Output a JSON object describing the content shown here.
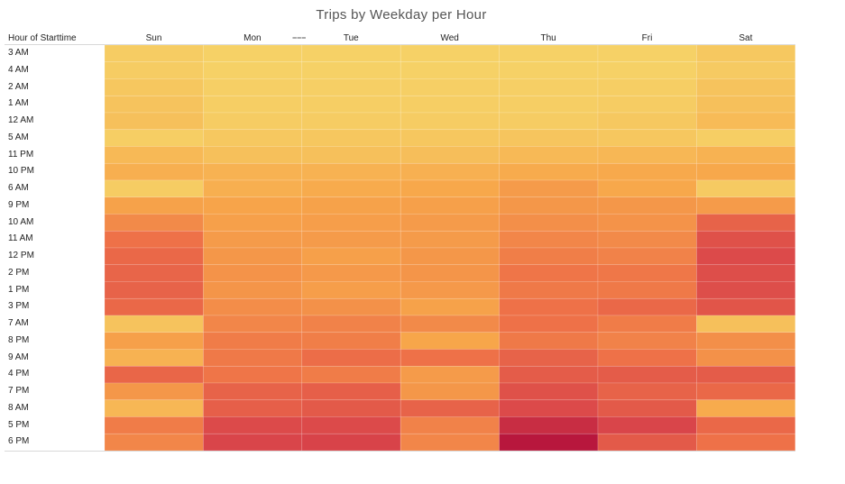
{
  "chart_data": {
    "type": "heatmap",
    "title": "Trips by Weekday per Hour",
    "row_header": "Hour of Starttime",
    "columns": [
      "Sun",
      "Mon",
      "Tue",
      "Wed",
      "Thu",
      "Fri",
      "Sat"
    ],
    "rows": [
      "3 AM",
      "4 AM",
      "2 AM",
      "1 AM",
      "12 AM",
      "5 AM",
      "11 PM",
      "10 PM",
      "6 AM",
      "9 PM",
      "10 AM",
      "11 AM",
      "12 PM",
      "2 PM",
      "1 PM",
      "3 PM",
      "7 AM",
      "8 PM",
      "9 AM",
      "4 PM",
      "7 PM",
      "8 AM",
      "5 PM",
      "6 PM"
    ],
    "values": [
      [
        0.03,
        0.0,
        0.0,
        0.0,
        0.0,
        0.0,
        0.05
      ],
      [
        0.03,
        0.0,
        0.0,
        0.0,
        0.0,
        0.0,
        0.04
      ],
      [
        0.06,
        0.01,
        0.01,
        0.01,
        0.01,
        0.02,
        0.08
      ],
      [
        0.08,
        0.02,
        0.02,
        0.02,
        0.02,
        0.03,
        0.1
      ],
      [
        0.1,
        0.03,
        0.03,
        0.03,
        0.03,
        0.05,
        0.13
      ],
      [
        0.02,
        0.05,
        0.06,
        0.06,
        0.07,
        0.06,
        0.02
      ],
      [
        0.14,
        0.1,
        0.1,
        0.11,
        0.14,
        0.15,
        0.18
      ],
      [
        0.2,
        0.18,
        0.18,
        0.19,
        0.22,
        0.23,
        0.24
      ],
      [
        0.03,
        0.2,
        0.22,
        0.24,
        0.3,
        0.24,
        0.04
      ],
      [
        0.27,
        0.26,
        0.27,
        0.28,
        0.32,
        0.32,
        0.3
      ],
      [
        0.38,
        0.28,
        0.29,
        0.3,
        0.36,
        0.34,
        0.58
      ],
      [
        0.5,
        0.3,
        0.3,
        0.3,
        0.4,
        0.38,
        0.68
      ],
      [
        0.55,
        0.32,
        0.28,
        0.32,
        0.44,
        0.42,
        0.72
      ],
      [
        0.57,
        0.34,
        0.31,
        0.33,
        0.48,
        0.47,
        0.7
      ],
      [
        0.58,
        0.33,
        0.29,
        0.31,
        0.46,
        0.46,
        0.7
      ],
      [
        0.55,
        0.37,
        0.35,
        0.27,
        0.5,
        0.55,
        0.66
      ],
      [
        0.08,
        0.4,
        0.42,
        0.38,
        0.5,
        0.45,
        0.1
      ],
      [
        0.28,
        0.45,
        0.44,
        0.25,
        0.46,
        0.42,
        0.36
      ],
      [
        0.18,
        0.46,
        0.52,
        0.5,
        0.58,
        0.5,
        0.35
      ],
      [
        0.56,
        0.48,
        0.45,
        0.3,
        0.62,
        0.62,
        0.62
      ],
      [
        0.32,
        0.58,
        0.6,
        0.32,
        0.68,
        0.58,
        0.55
      ],
      [
        0.15,
        0.6,
        0.63,
        0.58,
        0.72,
        0.63,
        0.22
      ],
      [
        0.45,
        0.72,
        0.72,
        0.42,
        0.88,
        0.75,
        0.55
      ],
      [
        0.4,
        0.75,
        0.76,
        0.4,
        1.0,
        0.63,
        0.5
      ]
    ],
    "color_scale": [
      "#f6d166",
      "#f7a64a",
      "#ee7148",
      "#d9454a",
      "#b8173d"
    ],
    "legend": "none",
    "grid": true
  }
}
